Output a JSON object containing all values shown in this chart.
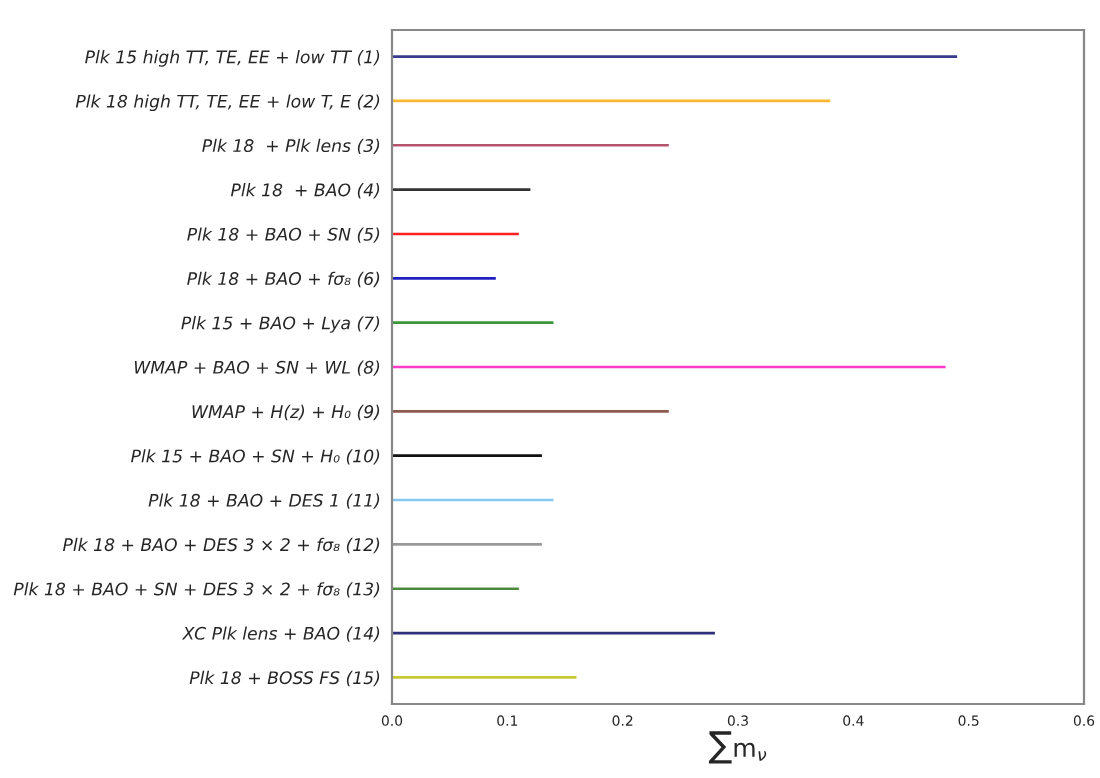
{
  "chart_data": {
    "type": "bar",
    "orientation": "horizontal",
    "xlabel": "∑m$_{ν}$",
    "categories": [
      "Plk 15 high TT, TE, EE + low TT (1)",
      "Plk 18 high TT, TE, EE + low T, E (2)",
      "Plk 18  + Plk lens (3)",
      "Plk 18  + BAO (4)",
      "Plk 18 + BAO + SN (5)",
      "Plk 18 + BAO + fσ₈ (6)",
      "Plk 15 + BAO + Lya (7)",
      "WMAP + BAO + SN + WL (8)",
      "WMAP + H(z) + H₀ (9)",
      "Plk 15 + BAO + SN + H₀ (10)",
      "Plk 18 + BAO + DES 1 (11)",
      "Plk 18 + BAO + DES 3 × 2 + fσ₈ (12)",
      "Plk 18 + BAO + SN + DES 3 × 2 + fσ₈ (13)",
      "XC Plk lens + BAO (14)",
      "Plk 18 + BOSS FS (15)"
    ],
    "values": [
      0.49,
      0.38,
      0.24,
      0.12,
      0.11,
      0.09,
      0.14,
      0.48,
      0.24,
      0.13,
      0.14,
      0.13,
      0.11,
      0.28,
      0.16
    ],
    "colors": [
      "#3a3a8c",
      "#ffb733",
      "#b5546e",
      "#333333",
      "#ff2020",
      "#2020c0",
      "#3c963c",
      "#ff3cc8",
      "#8c5a50",
      "#111111",
      "#88c8f0",
      "#999999",
      "#4a8a3a",
      "#30307a",
      "#c8c832"
    ],
    "xlim": [
      0,
      0.6
    ],
    "xticks": [
      {
        "value": 0,
        "label": "0.0"
      },
      0.1,
      0.2,
      0.3,
      0.4,
      0.5,
      0.6
    ],
    "grid": false,
    "legend": false
  }
}
